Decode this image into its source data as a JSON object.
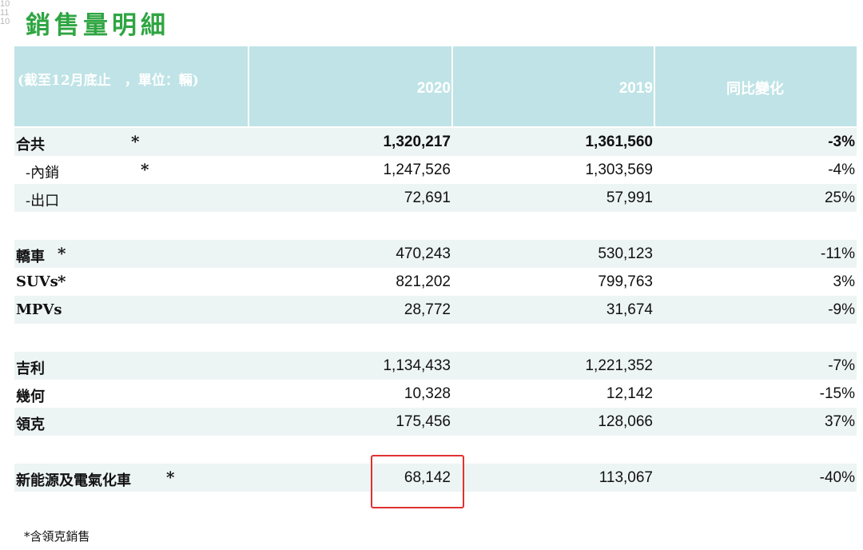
{
  "page_number_marks": [
    "10",
    "11",
    "10"
  ],
  "title": "銷售量明細",
  "header": {
    "note": "(截至12月底止　，單位：輛)",
    "col_2020": "2020",
    "col_2019": "2019",
    "col_change": "同比變化"
  },
  "rows": [
    {
      "label": "合共",
      "marker": "*",
      "v2020": "1,320,217",
      "v2019": "1,361,560",
      "change": "-3%",
      "bold": true
    },
    {
      "label": "-內銷",
      "marker": "*",
      "v2020": "1,247,526",
      "v2019": "1,303,569",
      "change": "-4%"
    },
    {
      "label": "-出口",
      "marker": "",
      "v2020": "72,691",
      "v2019": "57,991",
      "change": "25%"
    },
    {
      "label": "",
      "v2020": "",
      "v2019": "",
      "change": ""
    },
    {
      "label": "轎車",
      "marker": "*",
      "v2020": "470,243",
      "v2019": "530,123",
      "change": "-11%"
    },
    {
      "label": "SUVs",
      "marker": "*",
      "v2020": "821,202",
      "v2019": "799,763",
      "change": "3%"
    },
    {
      "label": "MPVs",
      "marker": "",
      "v2020": "28,772",
      "v2019": "31,674",
      "change": "-9%"
    },
    {
      "label": "",
      "v2020": "",
      "v2019": "",
      "change": ""
    },
    {
      "label": "吉利",
      "marker": "",
      "v2020": "1,134,433",
      "v2019": "1,221,352",
      "change": "-7%"
    },
    {
      "label": "幾何",
      "marker": "",
      "v2020": "10,328",
      "v2019": "12,142",
      "change": "-15%"
    },
    {
      "label": "領克",
      "marker": "",
      "v2020": "175,456",
      "v2019": "128,066",
      "change": "37%"
    },
    {
      "label": "",
      "v2020": "",
      "v2019": "",
      "change": ""
    },
    {
      "label": "新能源及電氣化車",
      "marker": "*",
      "v2020": "68,142",
      "v2019": "113,067",
      "change": "-40%"
    },
    {
      "label": "",
      "v2020": "",
      "v2019": "",
      "change": ""
    }
  ],
  "footnote": "*含領克銷售",
  "colors": {
    "title": "#2fa542",
    "header_bg": "#bfe3e6",
    "band": "#edf4f4",
    "highlight_box": "#e03131"
  }
}
